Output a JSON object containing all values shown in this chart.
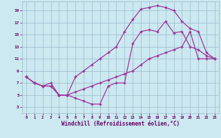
{
  "xlabel": "Windchill (Refroidissement éolien,°C)",
  "background_color": "#cce8f0",
  "line_color": "#993399",
  "hours": [
    0,
    1,
    2,
    3,
    4,
    5,
    6,
    7,
    8,
    9,
    10,
    11,
    12,
    13,
    14,
    15,
    16,
    17,
    18,
    19,
    20,
    21,
    22,
    23
  ],
  "line_top": [
    8.0,
    7.0,
    null,
    null,
    null,
    null,
    null,
    null,
    null,
    null,
    null,
    null,
    15.5,
    17.5,
    19.2,
    19.5,
    19.8,
    19.5,
    null,
    null,
    null,
    null,
    null,
    null
  ],
  "line_mid_upper": [
    null,
    null,
    null,
    null,
    null,
    null,
    null,
    null,
    null,
    null,
    null,
    null,
    null,
    null,
    null,
    null,
    null,
    17.2,
    null,
    null,
    null,
    null,
    null,
    null
  ],
  "line2": [
    8.0,
    7.0,
    6.5,
    7.0,
    5.0,
    5.0,
    8.0,
    9.0,
    10.0,
    11.0,
    12.0,
    13.0,
    15.5,
    17.5,
    19.2,
    19.5,
    19.8,
    19.5,
    19.0,
    17.2,
    16.0,
    15.5,
    12.0,
    11.0
  ],
  "line1": [
    8.0,
    7.0,
    6.5,
    6.5,
    5.0,
    5.0,
    4.5,
    4.0,
    3.5,
    3.5,
    6.5,
    7.0,
    7.0,
    13.5,
    15.5,
    15.8,
    15.5,
    17.2,
    15.3,
    15.5,
    13.0,
    12.5,
    11.5,
    11.0
  ],
  "line3": [
    8.0,
    7.0,
    6.5,
    6.5,
    5.0,
    5.0,
    5.5,
    6.0,
    6.5,
    7.0,
    7.5,
    8.0,
    8.5,
    9.0,
    10.0,
    11.0,
    11.5,
    12.0,
    12.5,
    13.0,
    15.5,
    11.0,
    11.0,
    11.0
  ],
  "xlim": [
    -0.5,
    23.5
  ],
  "ylim": [
    2,
    20.5
  ],
  "yticks": [
    3,
    5,
    7,
    9,
    11,
    13,
    15,
    17,
    19
  ],
  "xticks": [
    0,
    1,
    2,
    3,
    4,
    5,
    6,
    7,
    8,
    9,
    10,
    11,
    12,
    13,
    14,
    15,
    16,
    17,
    18,
    19,
    20,
    21,
    22,
    23
  ],
  "grid_color": "#99bbcc",
  "font_color": "#660066"
}
